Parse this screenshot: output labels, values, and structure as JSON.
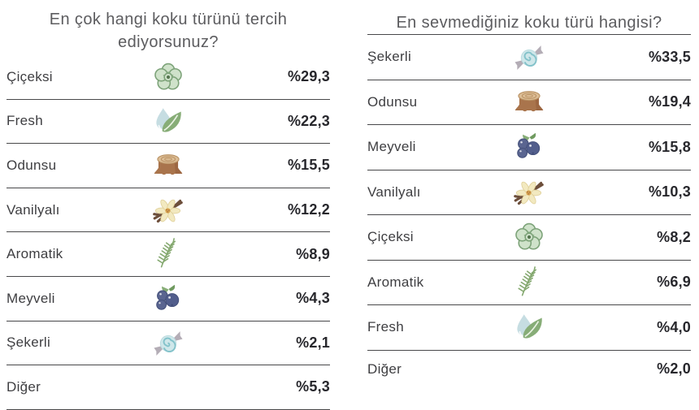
{
  "colors": {
    "background": "#ffffff",
    "title_text": "#5c5c5f",
    "label_text": "#3e3e41",
    "value_text": "#27272c",
    "divider": "#48484a",
    "flower_green": "#cfe2ca",
    "leaf_green": "#87ad77",
    "drop_blue": "#c6dde2",
    "stump_brown": "#a9744c",
    "vanilla_cream": "#f2e9c0",
    "berry_blue": "#525e8c",
    "candy_gray": "#b4adb6",
    "candy_blue": "#cfe7ea"
  },
  "chart_data": [
    {
      "type": "table",
      "title": "En çok hangi koku türünü tercih ediyorsunuz?",
      "unit": "percent",
      "legend_position": "none",
      "rows": [
        {
          "label": "Çiçeksi",
          "icon": "flower-icon",
          "value": 29.3,
          "display": "%29,3"
        },
        {
          "label": "Fresh",
          "icon": "fresh-leaf-icon",
          "value": 22.3,
          "display": "%22,3"
        },
        {
          "label": "Odunsu",
          "icon": "tree-stump-icon",
          "value": 15.5,
          "display": "%15,5"
        },
        {
          "label": "Vanilyalı",
          "icon": "vanilla-icon",
          "value": 12.2,
          "display": "%12,2"
        },
        {
          "label": "Aromatik",
          "icon": "herb-sprig-icon",
          "value": 8.9,
          "display": "%8,9"
        },
        {
          "label": "Meyveli",
          "icon": "berries-icon",
          "value": 4.3,
          "display": "%4,3"
        },
        {
          "label": "Şekerli",
          "icon": "candy-icon",
          "value": 2.1,
          "display": "%2,1"
        },
        {
          "label": "Diğer",
          "icon": null,
          "value": 5.3,
          "display": "%5,3"
        }
      ]
    },
    {
      "type": "table",
      "title": "En sevmediğiniz koku türü hangisi?",
      "unit": "percent",
      "legend_position": "none",
      "rows": [
        {
          "label": "Şekerli",
          "icon": "candy-icon",
          "value": 33.5,
          "display": "%33,5"
        },
        {
          "label": "Odunsu",
          "icon": "tree-stump-icon",
          "value": 19.4,
          "display": "%19,4"
        },
        {
          "label": "Meyveli",
          "icon": "berries-icon",
          "value": 15.8,
          "display": "%15,8"
        },
        {
          "label": "Vanilyalı",
          "icon": "vanilla-icon",
          "value": 10.3,
          "display": "%10,3"
        },
        {
          "label": "Çiçeksi",
          "icon": "flower-icon",
          "value": 8.2,
          "display": "%8,2"
        },
        {
          "label": "Aromatik",
          "icon": "herb-sprig-icon",
          "value": 6.9,
          "display": "%6,9"
        },
        {
          "label": "Fresh",
          "icon": "fresh-leaf-icon",
          "value": 4.0,
          "display": "%4,0"
        },
        {
          "label": "Diğer",
          "icon": null,
          "value": 2.0,
          "display": "%2,0"
        }
      ]
    }
  ]
}
